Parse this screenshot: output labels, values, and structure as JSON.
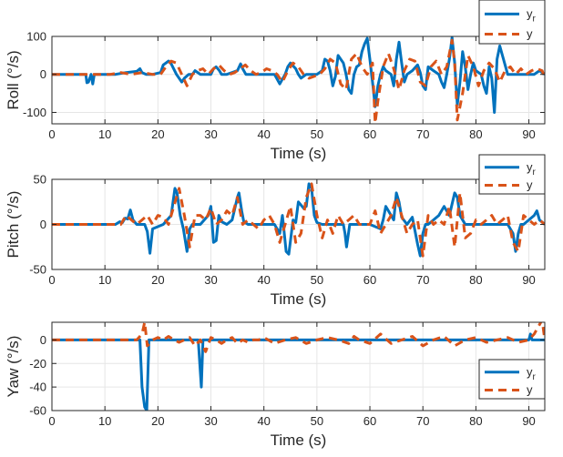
{
  "colors": {
    "yr": "#0072BD",
    "y": "#D95319",
    "grid": "#e6e6e6",
    "axis": "#262626"
  },
  "chart_data": [
    {
      "type": "line",
      "title": "",
      "xlabel": "Time (s)",
      "ylabel": "Roll (°/s)",
      "xlim": [
        0,
        93
      ],
      "ylim": [
        -130,
        100
      ],
      "xticks": [
        0,
        10,
        20,
        30,
        40,
        50,
        60,
        70,
        80,
        90
      ],
      "yticks": [
        -100,
        0,
        100
      ],
      "legend": {
        "placement": "top-right",
        "entries": [
          "y_r",
          "y"
        ]
      },
      "series": [
        {
          "name": "y_r",
          "x": [
            0,
            6.4,
            6.6,
            6.9,
            7.4,
            7.7,
            8.0,
            12,
            14,
            16,
            16.6,
            17,
            17.8,
            19,
            20.5,
            21,
            22,
            22.5,
            23.5,
            24.5,
            25,
            25.8,
            26.5,
            27,
            28,
            30,
            30.5,
            31,
            31.6,
            32,
            33,
            35,
            35.6,
            36,
            36.6,
            37,
            38,
            40,
            42,
            43,
            44,
            44.5,
            45,
            46,
            46.5,
            47,
            48,
            49,
            50,
            51,
            51.5,
            52,
            52.5,
            53,
            53.5,
            54,
            55,
            55.5,
            56,
            56.5,
            57,
            57.5,
            58,
            58.5,
            59,
            59.5,
            60,
            60.5,
            61,
            61.5,
            62,
            62.5,
            63,
            64,
            64.5,
            65,
            65.5,
            66,
            66.5,
            67,
            68,
            69,
            69.5,
            70,
            70.5,
            71,
            72,
            73,
            73.5,
            74,
            74.5,
            75,
            75.5,
            76,
            76.5,
            77,
            77.5,
            78,
            78.5,
            79,
            79.5,
            80,
            81,
            81.5,
            82,
            82.5,
            83,
            83.5,
            84,
            84.5,
            85,
            86,
            86.5,
            87,
            88,
            89,
            90,
            91,
            92,
            93
          ],
          "y": [
            0,
            0,
            -22,
            -20,
            0,
            -25,
            0,
            0,
            5,
            8,
            15,
            5,
            0,
            0,
            5,
            25,
            35,
            28,
            0,
            -20,
            -10,
            0,
            0,
            10,
            0,
            0,
            15,
            20,
            10,
            0,
            0,
            10,
            28,
            15,
            0,
            0,
            0,
            0,
            0,
            -25,
            0,
            20,
            30,
            15,
            0,
            -10,
            0,
            0,
            0,
            10,
            40,
            35,
            10,
            -30,
            -5,
            50,
            30,
            0,
            -40,
            -50,
            0,
            20,
            25,
            60,
            80,
            95,
            40,
            -20,
            -85,
            -30,
            0,
            20,
            10,
            0,
            -30,
            40,
            85,
            30,
            -20,
            0,
            10,
            25,
            5,
            -30,
            -40,
            20,
            10,
            0,
            -20,
            -35,
            0,
            40,
            97,
            30,
            -80,
            -20,
            60,
            20,
            -40,
            0,
            30,
            10,
            0,
            -30,
            -50,
            20,
            -10,
            -100,
            40,
            75,
            50,
            0,
            0,
            0,
            0,
            0,
            0,
            0,
            10,
            0
          ]
        },
        {
          "name": "y",
          "x": [
            0,
            11,
            13,
            15,
            17,
            19,
            20.5,
            21.5,
            22.5,
            23.5,
            24.5,
            25.5,
            26.5,
            27.5,
            28.5,
            29.5,
            30.5,
            31.5,
            32.5,
            33.5,
            34.5,
            35.5,
            36.5,
            37.5,
            38.5,
            39.5,
            40.5,
            41.5,
            42.5,
            43.5,
            44.5,
            45.5,
            46.5,
            47.5,
            48.5,
            49.5,
            50.5,
            51.5,
            52.5,
            53.5,
            54.5,
            55.5,
            56.5,
            57.5,
            58.5,
            59.5,
            60.5,
            61,
            61.5,
            62.5,
            63.5,
            64.5,
            65.5,
            66.5,
            67.5,
            68.5,
            69.5,
            70.5,
            71.5,
            72.5,
            73.5,
            74.5,
            75.5,
            76,
            76.5,
            77.5,
            78.5,
            79.5,
            80.5,
            81.5,
            82.5,
            83.5,
            84.5,
            85.5,
            86.5,
            87.5,
            88.5,
            89.5,
            90.5,
            91.5,
            92.5,
            93
          ],
          "y": [
            0,
            0,
            5,
            0,
            5,
            0,
            0,
            20,
            35,
            30,
            0,
            -30,
            0,
            10,
            15,
            0,
            15,
            25,
            10,
            0,
            5,
            15,
            25,
            10,
            0,
            5,
            15,
            10,
            0,
            -20,
            10,
            30,
            20,
            0,
            -10,
            -5,
            0,
            15,
            40,
            30,
            -25,
            -40,
            40,
            55,
            20,
            0,
            30,
            -128,
            -70,
            20,
            55,
            15,
            -40,
            10,
            40,
            35,
            -20,
            -30,
            20,
            35,
            0,
            20,
            90,
            30,
            -120,
            -50,
            50,
            20,
            -30,
            10,
            30,
            15,
            -20,
            10,
            20,
            0,
            15,
            0,
            10,
            15,
            10,
            -10
          ]
        }
      ]
    },
    {
      "type": "line",
      "title": "",
      "xlabel": "Time (s)",
      "ylabel": "Pitch (°/s)",
      "xlim": [
        0,
        93
      ],
      "ylim": [
        -50,
        50
      ],
      "xticks": [
        0,
        10,
        20,
        30,
        40,
        50,
        60,
        70,
        80,
        90
      ],
      "yticks": [
        -50,
        0,
        50
      ],
      "legend": {
        "placement": "top-right",
        "entries": [
          "y_r",
          "y"
        ]
      },
      "series": [
        {
          "name": "y_r",
          "x": [
            0,
            12,
            12.8,
            13.3,
            13.8,
            14.3,
            14.8,
            15.3,
            16,
            17.5,
            18,
            18.5,
            19,
            21,
            22.5,
            23.2,
            23.6,
            24.2,
            24.8,
            25.5,
            26,
            26.5,
            28,
            29.5,
            30,
            30.5,
            31,
            31.5,
            32,
            33,
            34,
            35,
            35.3,
            35.8,
            36.2,
            37,
            38,
            40,
            42,
            43,
            43.5,
            44.2,
            44.7,
            45.5,
            46,
            46.5,
            47.5,
            48,
            48.5,
            49,
            49.5,
            50,
            51,
            52,
            55,
            55.3,
            55.6,
            56.2,
            57,
            60,
            62,
            62.5,
            63,
            64,
            64.5,
            65,
            65.5,
            66,
            67,
            68,
            69,
            69.5,
            70,
            70.5,
            71,
            72,
            73,
            74,
            75,
            76,
            76.5,
            77,
            78,
            79,
            80,
            81,
            82,
            85,
            86,
            87,
            87.5,
            88,
            88.5,
            89,
            90,
            91,
            91.5,
            92,
            93
          ],
          "y": [
            0,
            0,
            3,
            2,
            7,
            6,
            16,
            5,
            0,
            0,
            -8,
            -32,
            -5,
            0,
            10,
            40,
            35,
            10,
            -5,
            -30,
            -5,
            0,
            0,
            10,
            20,
            -20,
            -18,
            10,
            3,
            0,
            5,
            30,
            35,
            15,
            3,
            0,
            0,
            0,
            0,
            -10,
            10,
            -30,
            -33,
            5,
            2,
            25,
            18,
            20,
            45,
            40,
            10,
            2,
            0,
            0,
            0,
            -10,
            -25,
            0,
            0,
            0,
            -5,
            5,
            20,
            10,
            5,
            35,
            25,
            8,
            0,
            8,
            -22,
            -35,
            -10,
            0,
            0,
            5,
            10,
            20,
            10,
            35,
            30,
            10,
            0,
            0,
            0,
            0,
            0,
            0,
            0,
            -10,
            -30,
            -10,
            0,
            0,
            5,
            10,
            15,
            5,
            0
          ]
        },
        {
          "name": "y",
          "x": [
            0,
            13,
            14,
            15,
            16,
            17,
            18,
            19,
            20,
            21,
            22,
            23,
            24,
            25,
            26,
            27,
            28,
            29,
            30,
            31,
            32,
            33,
            34,
            35,
            36,
            37,
            38,
            39,
            40,
            41,
            42,
            43,
            44,
            45,
            46,
            47,
            48,
            49,
            50,
            51,
            52,
            53,
            54,
            55,
            56,
            57,
            58,
            59,
            60,
            61,
            62,
            63,
            64,
            65,
            66,
            67,
            68,
            69,
            70,
            71,
            72,
            73,
            74,
            75,
            76,
            77,
            78,
            79,
            80,
            81,
            82,
            83,
            84,
            85,
            86,
            87,
            88,
            89,
            90,
            91,
            92,
            93
          ],
          "y": [
            0,
            0,
            10,
            5,
            0,
            5,
            10,
            0,
            10,
            8,
            0,
            20,
            40,
            10,
            -25,
            10,
            10,
            5,
            18,
            0,
            5,
            15,
            10,
            30,
            0,
            5,
            0,
            -5,
            5,
            10,
            0,
            -20,
            0,
            20,
            -20,
            -10,
            30,
            45,
            10,
            -15,
            5,
            -10,
            10,
            0,
            5,
            10,
            0,
            0,
            0,
            15,
            -10,
            0,
            10,
            30,
            10,
            -10,
            0,
            5,
            -35,
            10,
            0,
            5,
            0,
            20,
            -25,
            35,
            -15,
            -10,
            5,
            0,
            5,
            10,
            0,
            5,
            10,
            -20,
            -30,
            10,
            5,
            0,
            5,
            0
          ]
        }
      ]
    },
    {
      "type": "line",
      "title": "",
      "xlabel": "Time (s)",
      "ylabel": "Yaw (°/s)",
      "xlim": [
        0,
        93
      ],
      "ylim": [
        -60,
        15
      ],
      "xticks": [
        0,
        10,
        20,
        30,
        40,
        50,
        60,
        70,
        80,
        90
      ],
      "yticks": [
        -60,
        -40,
        -20,
        0
      ],
      "legend": {
        "placement": "bottom-right",
        "entries": [
          "y_r",
          "y"
        ]
      },
      "series": [
        {
          "name": "y_r",
          "x": [
            0,
            16.6,
            17.0,
            17.5,
            17.9,
            18.3,
            27.6,
            27.9,
            28.2,
            28.5,
            90,
            90.3,
            90.6,
            93
          ],
          "y": [
            0,
            0,
            -40,
            -57,
            -60,
            0,
            0,
            -20,
            -40,
            0,
            0,
            5,
            0,
            0
          ]
        },
        {
          "name": "y",
          "x": [
            0,
            16,
            17.0,
            17.5,
            18.0,
            18.5,
            19,
            20,
            21,
            22,
            23,
            24,
            25,
            26,
            27,
            28,
            29,
            30,
            31,
            32,
            33,
            34,
            35,
            36,
            37,
            38,
            39,
            40,
            42,
            44,
            46,
            48,
            50,
            52,
            54,
            56,
            57,
            58,
            60,
            62,
            64,
            66,
            68,
            70,
            72,
            74,
            76,
            78,
            80,
            82,
            84,
            86,
            88,
            90,
            91,
            92,
            92.5,
            93
          ],
          "y": [
            0,
            0,
            5,
            15,
            -5,
            -3,
            0,
            2,
            0,
            3,
            0,
            -2,
            0,
            2,
            -5,
            0,
            -10,
            2,
            0,
            -3,
            0,
            2,
            -3,
            0,
            -2,
            0,
            0,
            2,
            -3,
            0,
            2,
            -3,
            0,
            2,
            0,
            -3,
            3,
            0,
            -3,
            5,
            -3,
            0,
            3,
            -5,
            0,
            3,
            -5,
            0,
            2,
            -2,
            0,
            2,
            -2,
            0,
            5,
            13,
            17,
            0
          ]
        }
      ]
    }
  ]
}
